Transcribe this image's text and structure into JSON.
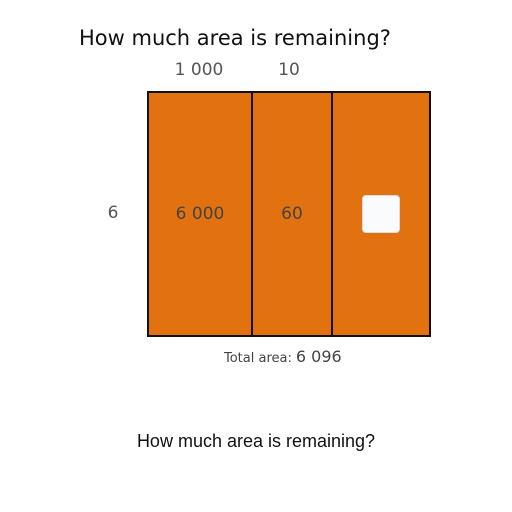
{
  "title": "How much area is remaining?",
  "columns": [
    "1 000",
    "10"
  ],
  "row_label": "6",
  "cells": [
    "6 000",
    "60",
    ""
  ],
  "total": {
    "label": "Total area:",
    "value": "6 096"
  },
  "question": "How much area is remaining?",
  "colors": {
    "fill": "#e2720f",
    "border": "#111111"
  }
}
